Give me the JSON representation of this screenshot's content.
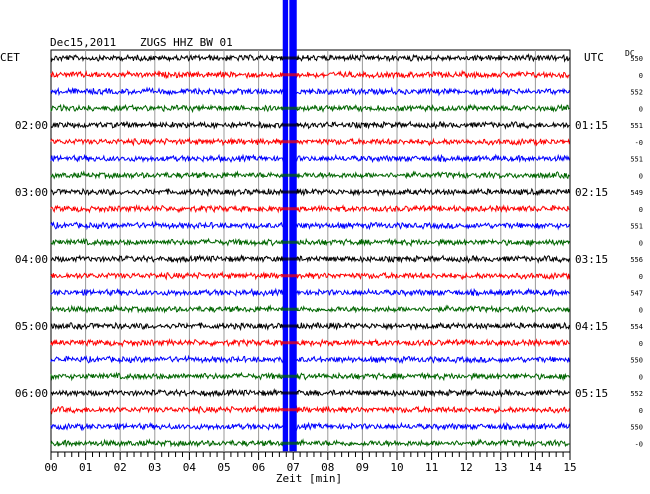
{
  "header": {
    "date": "Dec15,2011",
    "station": "ZUGS HHZ BW 01",
    "left_timezone": "CET",
    "right_timezone": "UTC",
    "dc_label": "DC"
  },
  "chart_data": {
    "type": "line",
    "subtype": "helicorder",
    "xlabel": "Zeit [min]",
    "xlim": [
      0,
      15
    ],
    "x_ticks": [
      "00",
      "01",
      "02",
      "03",
      "04",
      "05",
      "06",
      "07",
      "08",
      "09",
      "10",
      "11",
      "12",
      "13",
      "14",
      "15"
    ],
    "rows_per_hour": 4,
    "minutes_per_row": 15,
    "trace_colors": [
      "#000000",
      "#ff0000",
      "#0000ff",
      "#006600"
    ],
    "left_hour_labels": [
      {
        "row": 4,
        "label": "02:00"
      },
      {
        "row": 8,
        "label": "03:00"
      },
      {
        "row": 12,
        "label": "04:00"
      },
      {
        "row": 16,
        "label": "05:00"
      },
      {
        "row": 20,
        "label": "06:00"
      }
    ],
    "right_hour_labels": [
      {
        "row": 4,
        "label": "01:15"
      },
      {
        "row": 8,
        "label": "02:15"
      },
      {
        "row": 12,
        "label": "03:15"
      },
      {
        "row": 16,
        "label": "04:15"
      },
      {
        "row": 20,
        "label": "05:15"
      }
    ],
    "dc_offsets": [
      "550",
      "0",
      "552",
      "0",
      "551",
      "-0",
      "551",
      "0",
      "549",
      "0",
      "551",
      "0",
      "556",
      "0",
      "547",
      "0",
      "554",
      "0",
      "550",
      "0",
      "552",
      "0",
      "550",
      "-0"
    ],
    "event": {
      "minute": 6.9,
      "description": "large-amplitude signal saturating all traces"
    },
    "grid": true,
    "vertical_grid_minutes": [
      1,
      2,
      3,
      4,
      5,
      6,
      7,
      8,
      9,
      10,
      11,
      12,
      13,
      14
    ]
  }
}
